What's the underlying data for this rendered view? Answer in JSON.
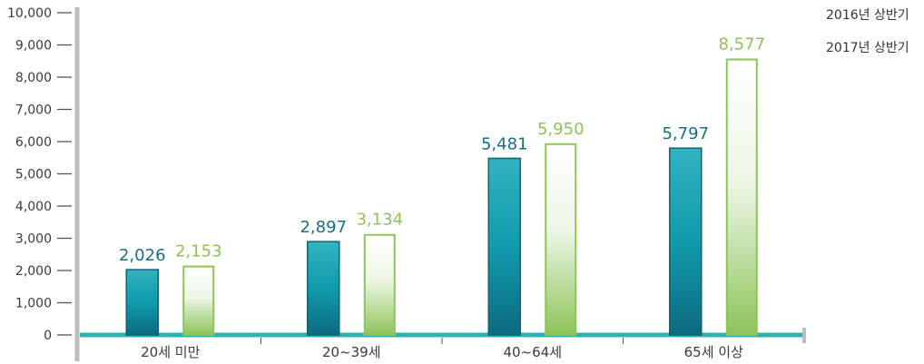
{
  "chart_data": {
    "type": "bar",
    "categories": [
      "20세 미만",
      "20~39세",
      "40~64세",
      "65세 이상"
    ],
    "series": [
      {
        "name": "2016년 상반기",
        "values": [
          2026,
          2897,
          5481,
          5797
        ],
        "value_labels": [
          "2,026",
          "2,897",
          "5,481",
          "5,797"
        ],
        "color": "#1e8496"
      },
      {
        "name": "2017년 상반기",
        "values": [
          2153,
          3134,
          5950,
          8577
        ],
        "value_labels": [
          "2,153",
          "3,134",
          "5,950",
          "8,577"
        ],
        "color": "#8dc45a"
      }
    ],
    "yticks": [
      0,
      1000,
      2000,
      3000,
      4000,
      5000,
      6000,
      7000,
      8000,
      9000,
      10000
    ],
    "ytick_labels": [
      "0",
      "1,000",
      "2,000",
      "3,000",
      "4,000",
      "5,000",
      "6,000",
      "7,000",
      "8,000",
      "9,000",
      "10,000"
    ],
    "ylim": [
      0,
      10000
    ],
    "legend_position": "top-right",
    "grid": false,
    "colors": {
      "baseline": "#2bb3b1",
      "axis": "#bdbdbd",
      "label_2016": "#1a6f80",
      "label_2017": "#8dc45a"
    }
  }
}
